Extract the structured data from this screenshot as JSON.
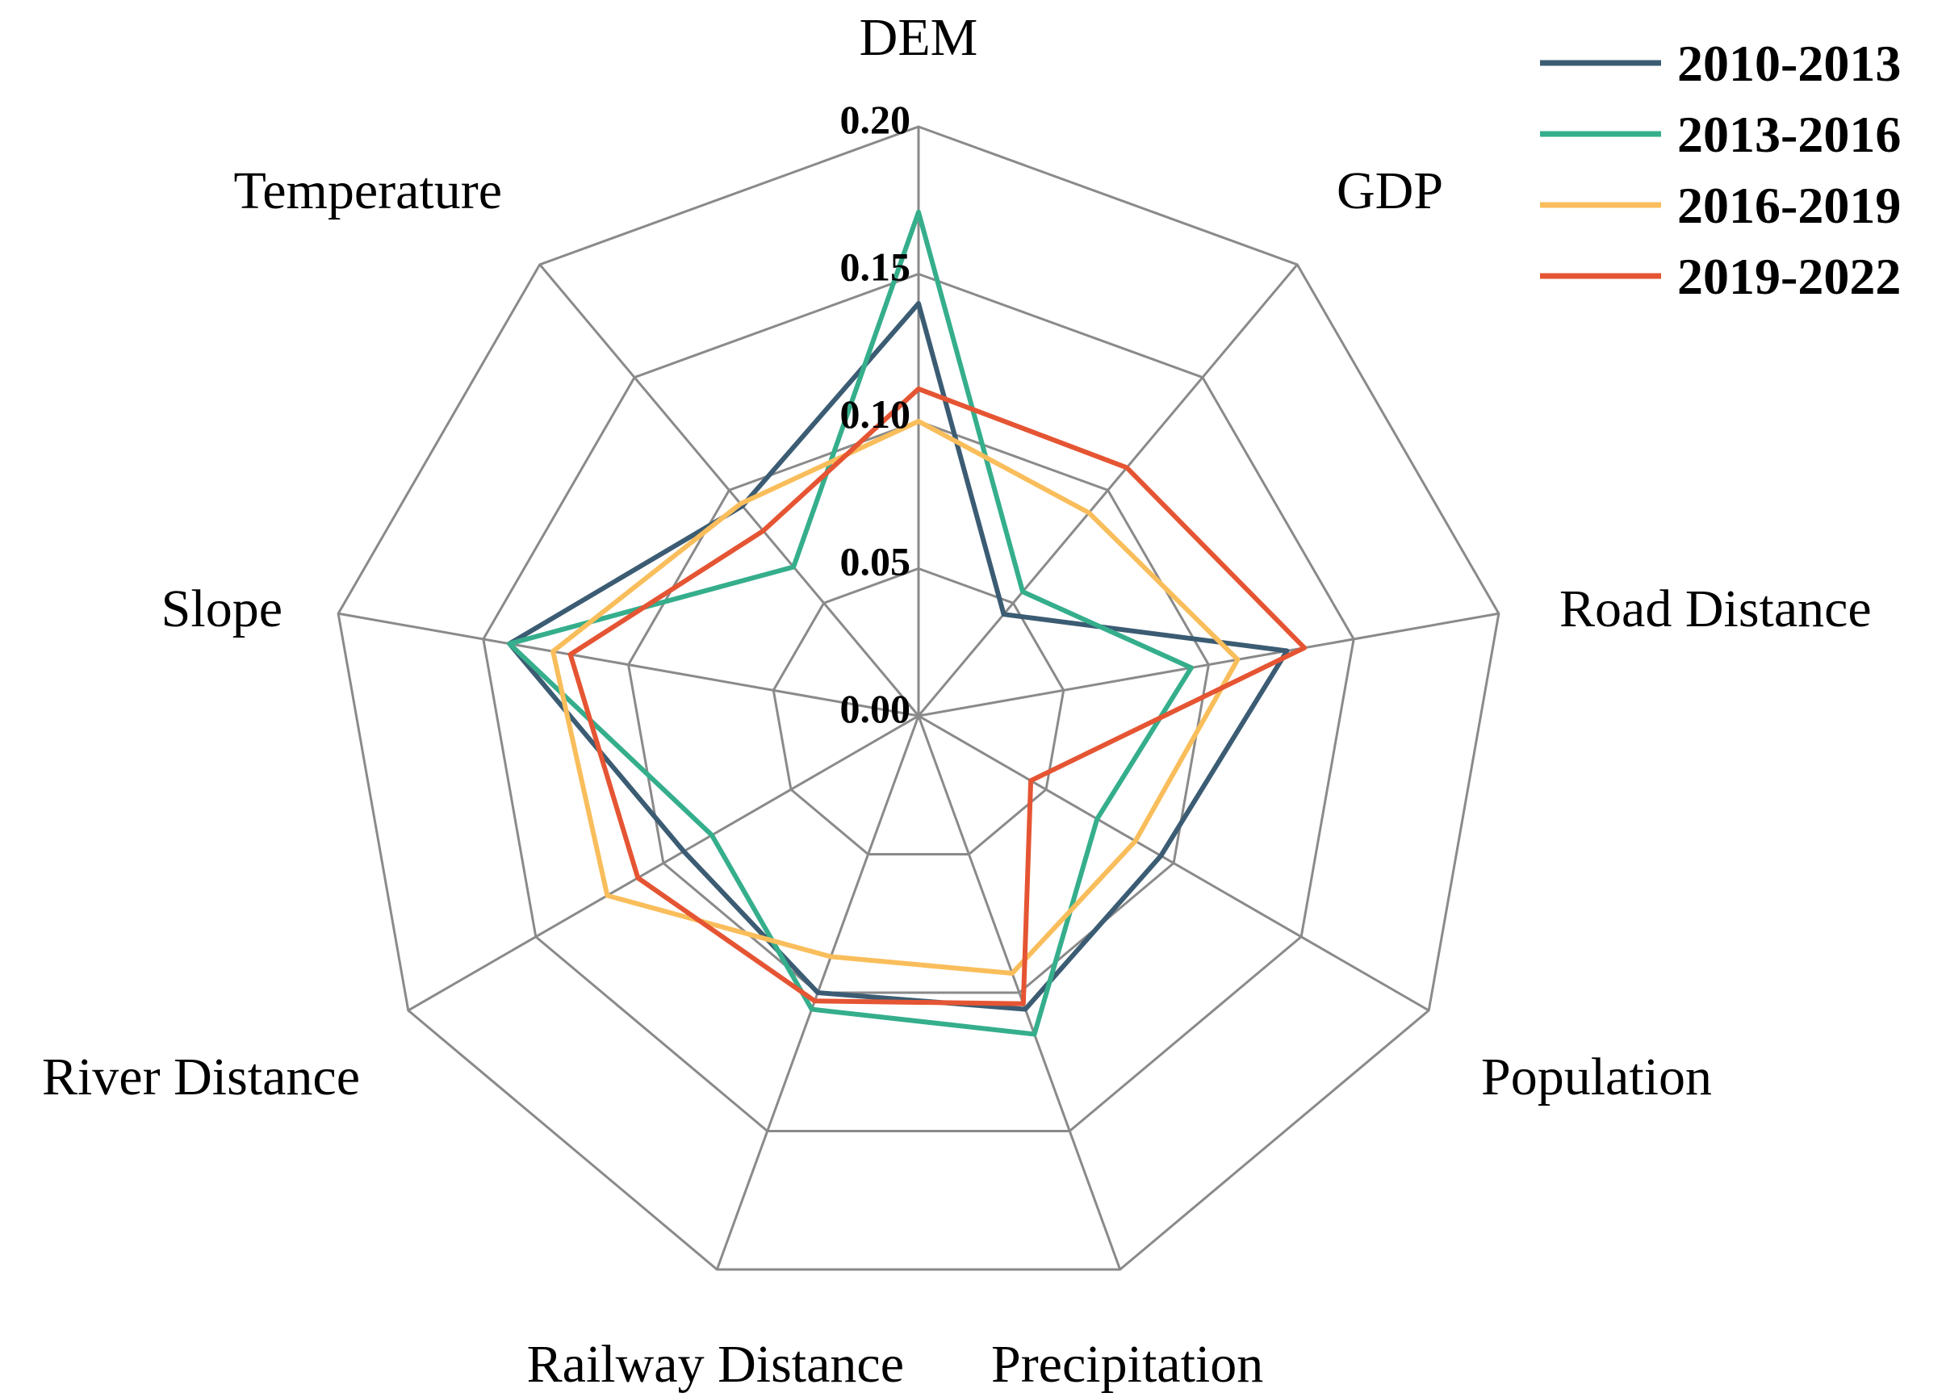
{
  "chart_data": {
    "type": "radar",
    "title": "",
    "axes": [
      "DEM",
      "GDP",
      "Road Distance",
      "Population",
      "Precipitation",
      "Railway Distance",
      "River Distance",
      "Slope",
      "Temperature"
    ],
    "rlim": [
      0,
      0.2
    ],
    "ticks": [
      "0.00",
      "0.05",
      "0.10",
      "0.15",
      "0.20"
    ],
    "tick_values": [
      0,
      0.05,
      0.1,
      0.15,
      0.2
    ],
    "grid": true,
    "legend_position": "top-right",
    "series": [
      {
        "name": "2010-2013",
        "color": "#3b5c73",
        "values": [
          0.14,
          0.045,
          0.127,
          0.095,
          0.106,
          0.1,
          0.092,
          0.141,
          0.093
        ]
      },
      {
        "name": "2013-2016",
        "color": "#35ae8c",
        "values": [
          0.171,
          0.055,
          0.094,
          0.07,
          0.115,
          0.106,
          0.081,
          0.141,
          0.066
        ]
      },
      {
        "name": "2016-2019",
        "color": "#f9be5b",
        "values": [
          0.1,
          0.09,
          0.11,
          0.085,
          0.093,
          0.087,
          0.122,
          0.126,
          0.094
        ]
      },
      {
        "name": "2019-2022",
        "color": "#e55533",
        "values": [
          0.111,
          0.11,
          0.133,
          0.044,
          0.104,
          0.103,
          0.11,
          0.12,
          0.082
        ]
      }
    ]
  }
}
